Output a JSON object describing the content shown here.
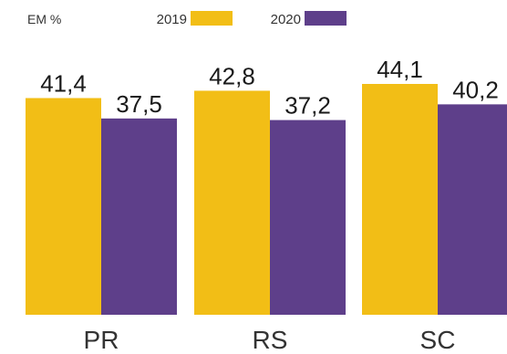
{
  "unit_label": "EM %",
  "colors": {
    "2019": "#F2BE16",
    "2020": "#5E3F8A"
  },
  "chart_data": {
    "type": "bar",
    "categories": [
      "PR",
      "RS",
      "SC"
    ],
    "series": [
      {
        "name": "2019",
        "values": [
          41.4,
          42.8,
          44.1
        ],
        "labels": [
          "41,4",
          "42,8",
          "44,1"
        ]
      },
      {
        "name": "2020",
        "values": [
          37.5,
          37.2,
          40.2
        ],
        "labels": [
          "37,5",
          "37,2",
          "40,2"
        ]
      }
    ],
    "legend_position": "top",
    "grid": false,
    "ylim": [
      0,
      44.1
    ]
  }
}
